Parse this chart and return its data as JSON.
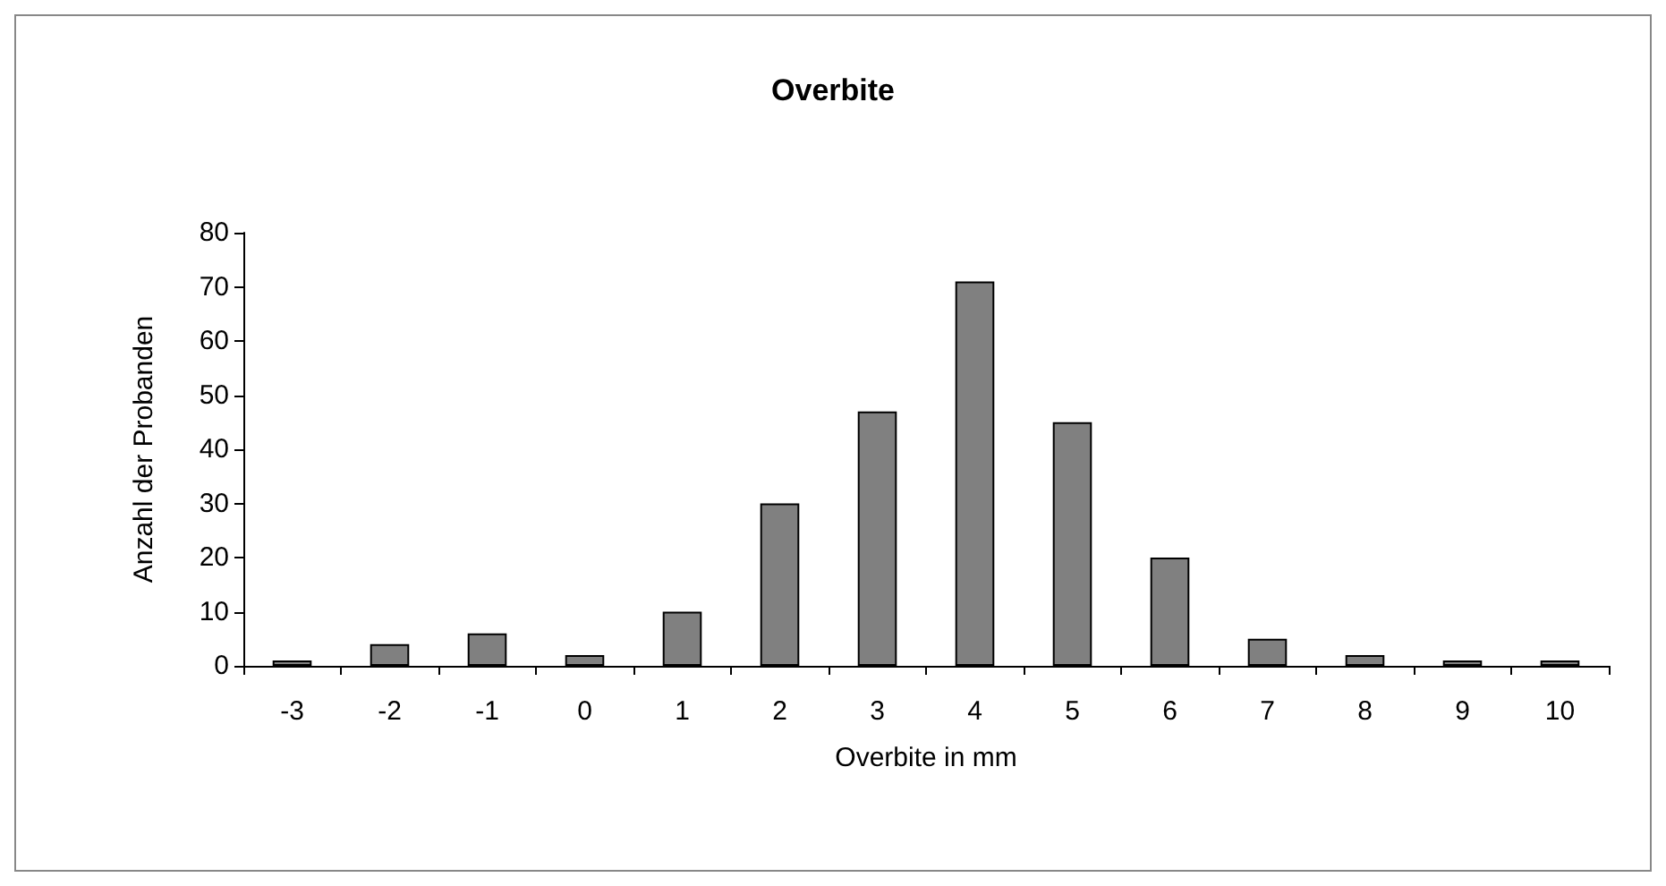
{
  "chart_data": {
    "type": "bar",
    "title": "Overbite",
    "xlabel": "Overbite in mm",
    "ylabel": "Anzahl der Probanden",
    "categories": [
      "-3",
      "-2",
      "-1",
      "0",
      "1",
      "2",
      "3",
      "4",
      "5",
      "6",
      "7",
      "8",
      "9",
      "10"
    ],
    "values": [
      1,
      4,
      6,
      2,
      10,
      30,
      47,
      71,
      45,
      20,
      5,
      2,
      1,
      1
    ],
    "color": "#808080",
    "ylim": [
      0,
      80
    ],
    "yticks": [
      0,
      10,
      20,
      30,
      40,
      50,
      60,
      70,
      80
    ],
    "grid": false
  }
}
